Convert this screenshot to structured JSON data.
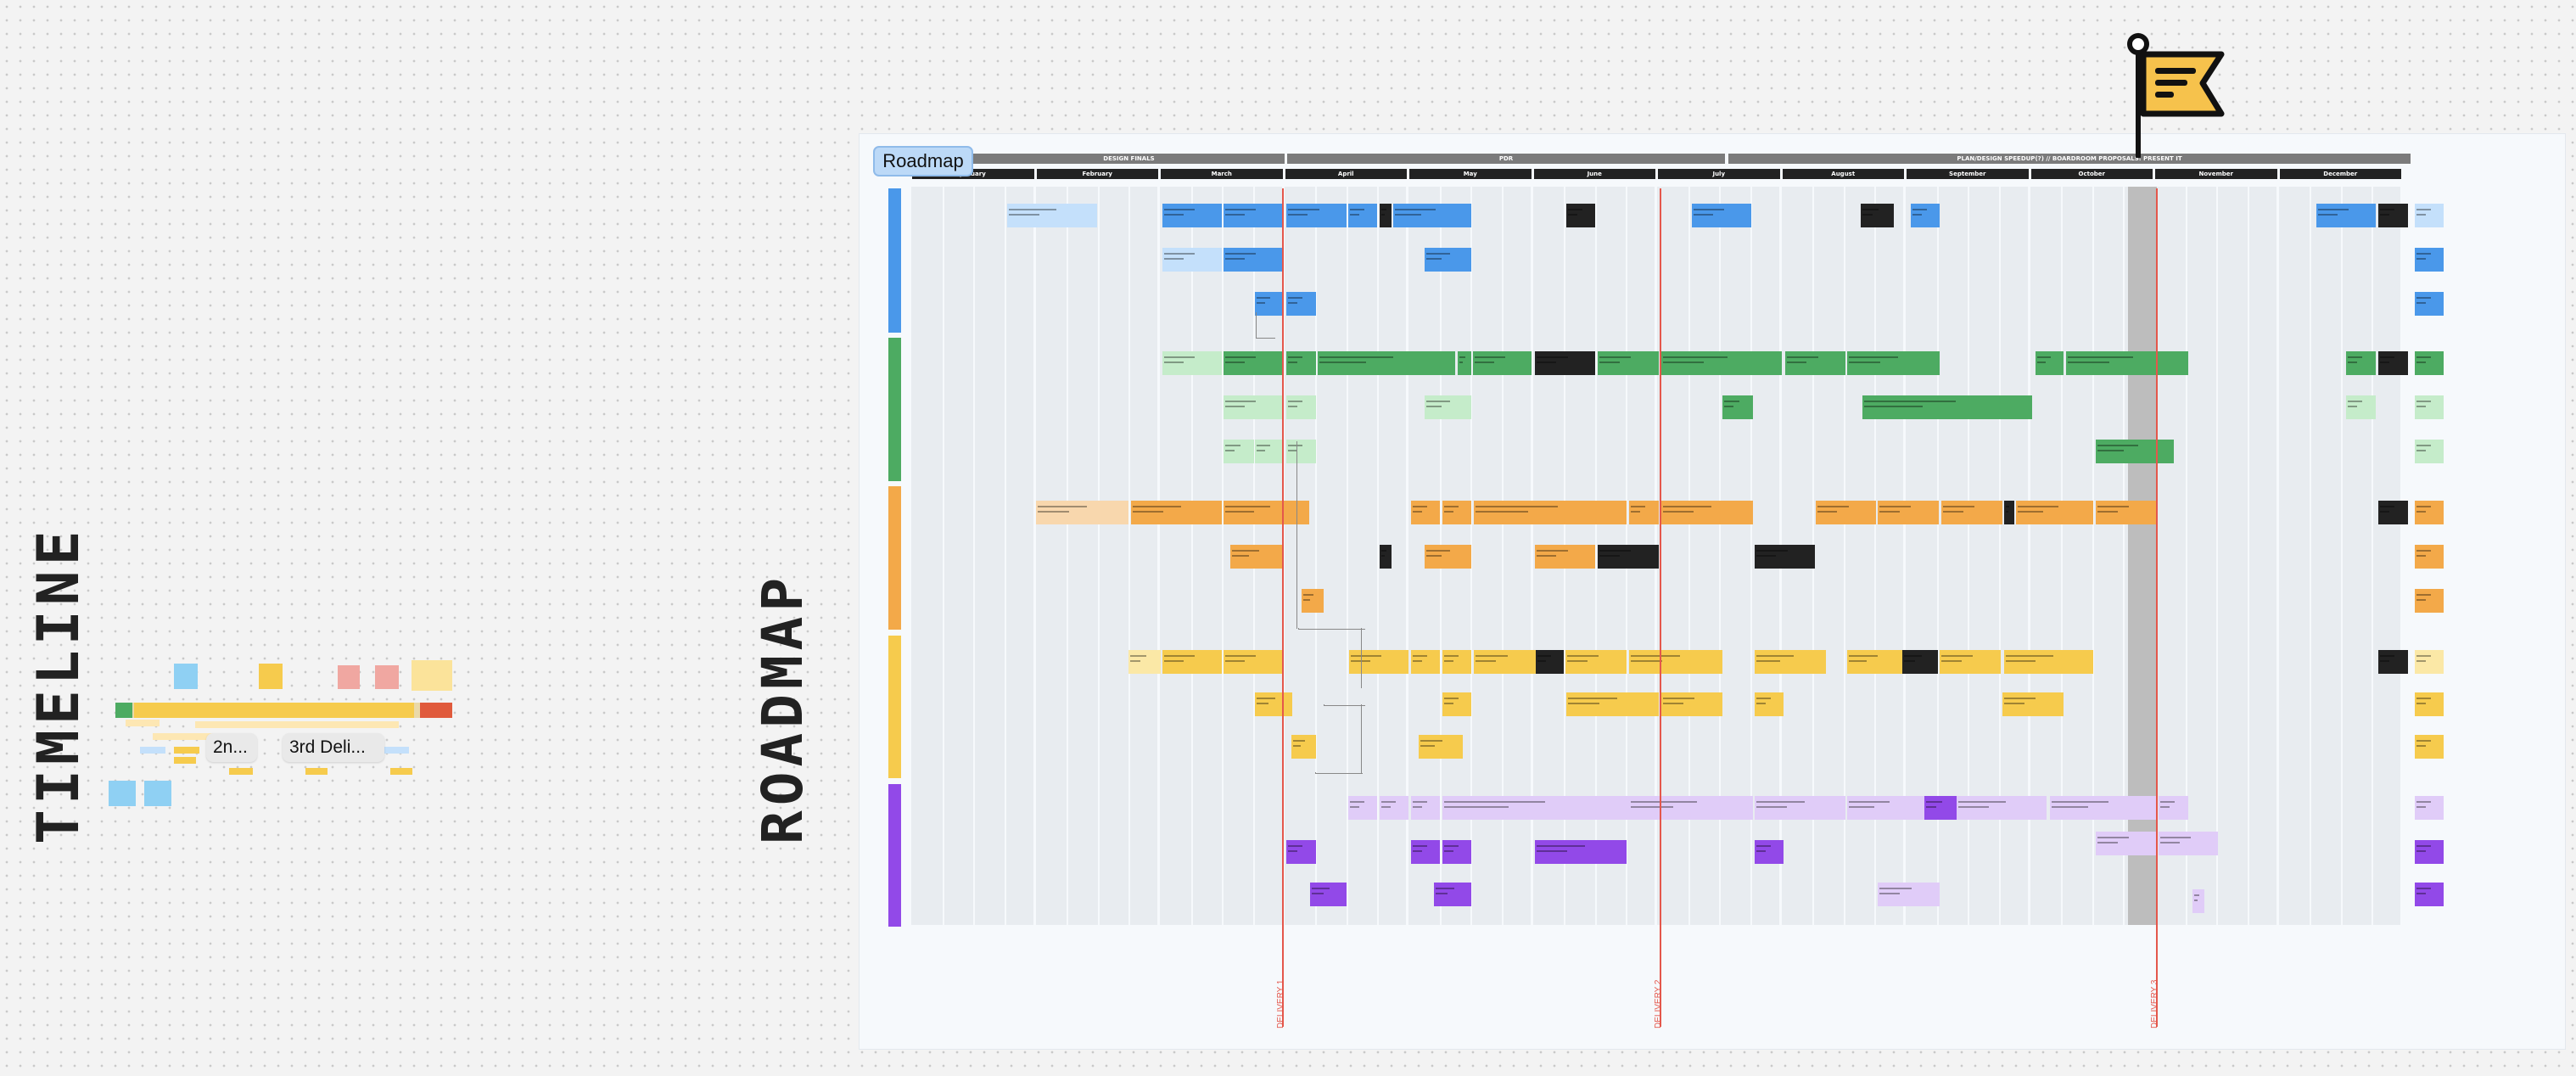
{
  "titles": {
    "timeline": "TIMELINE",
    "roadmap": "ROADMAP",
    "roadmap_tag": "Roadmap"
  },
  "quarters": [
    "DESIGN FINALS",
    "PDR",
    "PLAN/DESIGN SPEEDUP(?) // BOARDROOM PROPOSALS: PRESENT IT"
  ],
  "months": [
    "January",
    "February",
    "March",
    "April",
    "May",
    "June",
    "July",
    "August",
    "September",
    "October",
    "November",
    "December"
  ],
  "deliveries": [
    "DELIVERY 1",
    "DELIVERY 2",
    "DELIVERY 3"
  ],
  "timeline_tips": [
    "2n...",
    "3rd Deli..."
  ],
  "colors": {
    "blue": "#4a98ea",
    "blue_light": "#c4e0fb",
    "green": "#4dab62",
    "green_light": "#c5ecca",
    "orange": "#f3a949",
    "orange_light": "#f8d7ad",
    "yellow": "#f6cb4d",
    "yellow_light": "#fbe8a6",
    "purple": "#9249e8",
    "purple_light": "#e0ccf8",
    "dark": "#222222",
    "red": "#e4574b"
  }
}
